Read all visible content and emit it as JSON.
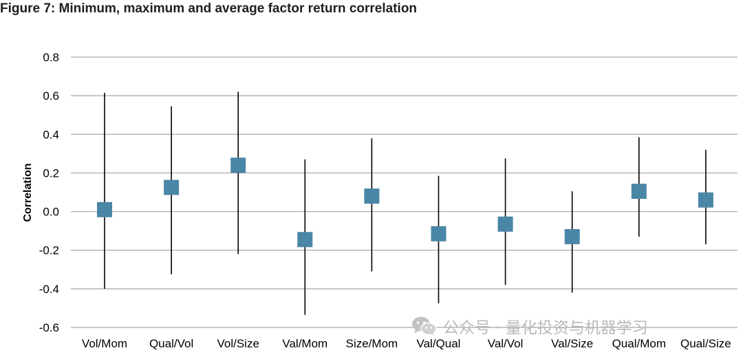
{
  "figure": {
    "title": "Figure 7: Minimum, maximum and average factor return correlation"
  },
  "watermark": {
    "text": "公众号 · 量化投资与机器学习",
    "icon": "wechat-icon"
  },
  "colors": {
    "marker": "#4a86a6",
    "whisker": "#000000",
    "grid": "#a6a6a6",
    "text": "#000000"
  },
  "chart_data": {
    "type": "scatter",
    "title": "Figure 7: Minimum, maximum and average factor return correlation",
    "xlabel": "",
    "ylabel": "Correlation",
    "ylim": [
      -0.6,
      0.8
    ],
    "yticks": [
      0.8,
      0.6,
      0.4,
      0.2,
      0.0,
      -0.2,
      -0.4,
      -0.6
    ],
    "ytick_labels": [
      "0.8",
      "0.6",
      "0.4",
      "0.2",
      "0.0",
      "-0.2",
      "-0.4",
      "-0.6"
    ],
    "grid": "horizontal",
    "legend": "none",
    "categories": [
      "Vol/Mom",
      "Qual/Vol",
      "Vol/Size",
      "Val/Mom",
      "Size/Mom",
      "Val/Qual",
      "Val/Vol",
      "Val/Size",
      "Qual/Mom",
      "Qual/Size"
    ],
    "series": [
      {
        "values": [
          0.01,
          0.125,
          0.24,
          -0.145,
          0.08,
          -0.115,
          -0.065,
          -0.13,
          0.105,
          0.06
        ]
      },
      {
        "values": [
          0.615,
          0.545,
          0.62,
          0.27,
          0.38,
          0.185,
          0.275,
          0.105,
          0.385,
          0.32
        ]
      },
      {
        "values": [
          -0.4,
          -0.325,
          -0.22,
          -0.535,
          -0.31,
          -0.475,
          -0.38,
          -0.42,
          -0.13,
          -0.17
        ]
      }
    ]
  }
}
